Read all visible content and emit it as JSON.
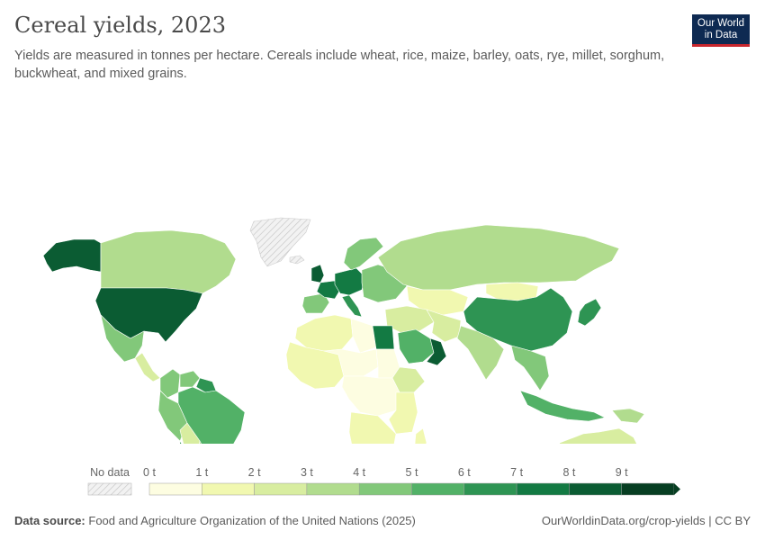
{
  "header": {
    "title": "Cereal yields, 2023",
    "subtitle": "Yields are measured in tonnes per hectare. Cereals include wheat, rice, maize, barley, oats, rye, millet, sorghum, buckwheat, and mixed grains."
  },
  "logo": {
    "line1": "Our World",
    "line2": "in Data"
  },
  "legend": {
    "no_data_label": "No data",
    "ticks": [
      "0 t",
      "1 t",
      "2 t",
      "3 t",
      "4 t",
      "5 t",
      "6 t",
      "7 t",
      "8 t",
      "9 t"
    ],
    "colors": [
      "#fdfde1",
      "#f1f8b0",
      "#d8eda0",
      "#b1dc8e",
      "#82c87a",
      "#52b167",
      "#2e9453",
      "#137a43",
      "#0b5c33",
      "#073e22"
    ],
    "no_data_color": "#e6e6e6"
  },
  "footer": {
    "source_label": "Data source:",
    "source_text": "Food and Agriculture Organization of the United Nations (2025)",
    "url_text": "OurWorldinData.org/crop-yields | CC BY"
  },
  "map_data": {
    "regions": [
      {
        "id": "alaska",
        "value": 8
      },
      {
        "id": "canada",
        "value": 3.5
      },
      {
        "id": "usa",
        "value": 8.5
      },
      {
        "id": "mexico",
        "value": 4
      },
      {
        "id": "central-america",
        "value": 2.5
      },
      {
        "id": "colombia",
        "value": 4.5
      },
      {
        "id": "venezuela",
        "value": 4
      },
      {
        "id": "guianas",
        "value": 6
      },
      {
        "id": "peru",
        "value": 4.5
      },
      {
        "id": "brazil",
        "value": 5
      },
      {
        "id": "bolivia",
        "value": 2.5
      },
      {
        "id": "paraguay",
        "value": 3.5
      },
      {
        "id": "argentina",
        "value": 3.5
      },
      {
        "id": "chile",
        "value": 6.5
      },
      {
        "id": "greenland",
        "value": null
      },
      {
        "id": "iceland",
        "value": null
      },
      {
        "id": "uk",
        "value": 8
      },
      {
        "id": "france",
        "value": 7.5
      },
      {
        "id": "iberia",
        "value": 4
      },
      {
        "id": "central-europe",
        "value": 7
      },
      {
        "id": "italy",
        "value": 6
      },
      {
        "id": "scandinavia",
        "value": 4.5
      },
      {
        "id": "eastern-europe",
        "value": 4.5
      },
      {
        "id": "russia",
        "value": 3
      },
      {
        "id": "kazakhstan",
        "value": 1.5
      },
      {
        "id": "mongolia",
        "value": 1.5
      },
      {
        "id": "china",
        "value": 6.5
      },
      {
        "id": "japan-korea",
        "value": 6.5
      },
      {
        "id": "middle-east",
        "value": 2.5
      },
      {
        "id": "saudi-arabia",
        "value": 5
      },
      {
        "id": "oman-uae",
        "value": 8
      },
      {
        "id": "iran",
        "value": 2.5
      },
      {
        "id": "india",
        "value": 3.5
      },
      {
        "id": "southeast-asia",
        "value": 4.5
      },
      {
        "id": "indonesia",
        "value": 5.5
      },
      {
        "id": "png",
        "value": 3.5
      },
      {
        "id": "maghreb",
        "value": 1
      },
      {
        "id": "libya",
        "value": 0.5
      },
      {
        "id": "egypt",
        "value": 7.5
      },
      {
        "id": "west-africa",
        "value": 1.2
      },
      {
        "id": "sahel",
        "value": 0.8
      },
      {
        "id": "sudan",
        "value": 0.5
      },
      {
        "id": "ethiopia",
        "value": 2.5
      },
      {
        "id": "central-africa",
        "value": 0.7
      },
      {
        "id": "east-africa",
        "value": 1.5
      },
      {
        "id": "southern-africa",
        "value": 1
      },
      {
        "id": "south-africa",
        "value": 5
      },
      {
        "id": "madagascar",
        "value": 1.5
      },
      {
        "id": "australia",
        "value": 2.5
      },
      {
        "id": "new-zealand",
        "value": 8.5
      }
    ]
  }
}
